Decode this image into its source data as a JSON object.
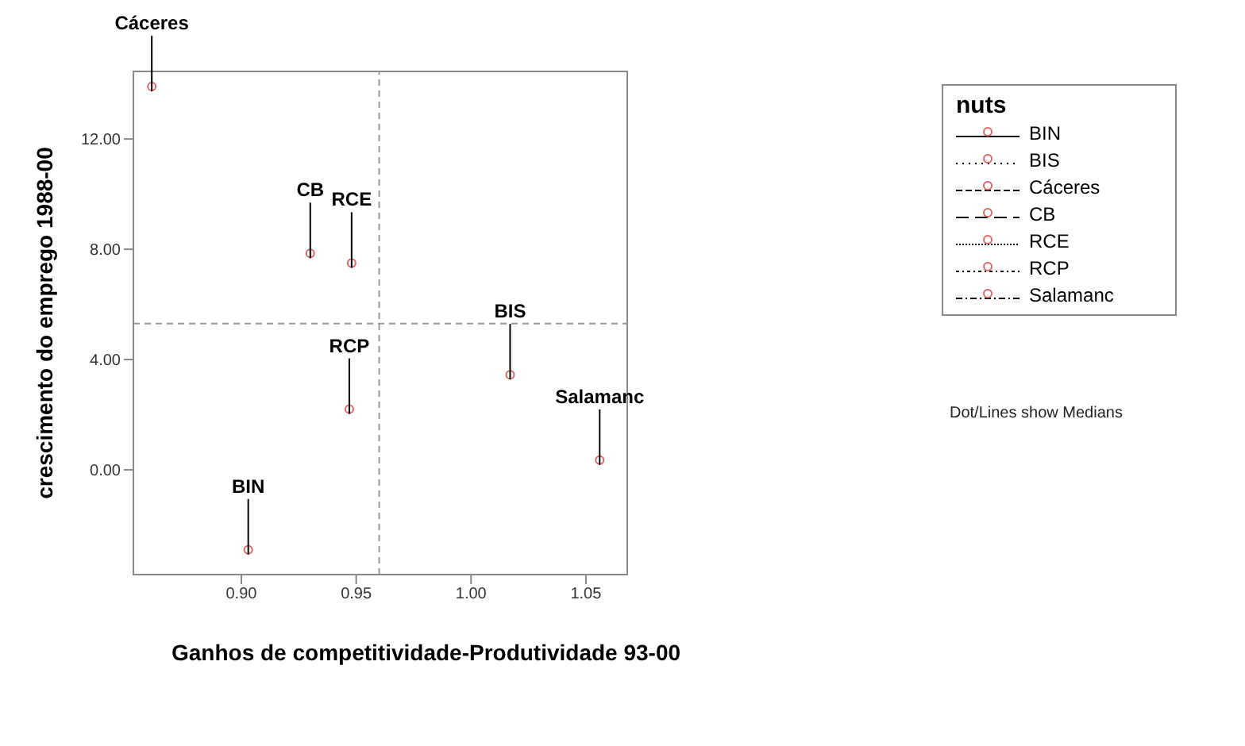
{
  "chart_data": {
    "type": "scatter",
    "xlabel": "Ganhos de competitividade-Produtividade 93-00",
    "ylabel": "crescimento do emprego 1988-00",
    "legend_title": "nuts",
    "legend": "right",
    "marker": "circle",
    "xlim": [
      0.853,
      1.068
    ],
    "ylim": [
      -3.8,
      14.45
    ],
    "xticks": [
      {
        "value": 0.9,
        "label": "0.90"
      },
      {
        "value": 0.95,
        "label": "0.95"
      },
      {
        "value": 1.0,
        "label": "1.00"
      },
      {
        "value": 1.05,
        "label": "1.05"
      }
    ],
    "yticks": [
      {
        "value": 0,
        "label": "0.00"
      },
      {
        "value": 4,
        "label": "4.00"
      },
      {
        "value": 8,
        "label": "8.00"
      },
      {
        "value": 12,
        "label": "12.00"
      }
    ],
    "series": [
      {
        "name": "BIN",
        "color": "#e06666",
        "x": [
          0.903
        ],
        "values": [
          -2.9
        ]
      },
      {
        "name": "BIS",
        "color": "#e06666",
        "x": [
          1.017
        ],
        "values": [
          3.45
        ]
      },
      {
        "name": "Cáceres",
        "color": "#e06666",
        "x": [
          0.861
        ],
        "values": [
          13.9
        ]
      },
      {
        "name": "CB",
        "color": "#e06666",
        "x": [
          0.93
        ],
        "values": [
          7.85
        ]
      },
      {
        "name": "RCE",
        "color": "#e06666",
        "x": [
          0.948
        ],
        "values": [
          7.5
        ]
      },
      {
        "name": "RCP",
        "color": "#e06666",
        "x": [
          0.947
        ],
        "values": [
          2.2
        ]
      },
      {
        "name": "Salamanc",
        "color": "#e06666",
        "x": [
          1.056
        ],
        "values": [
          0.35
        ]
      }
    ],
    "ref_lines": [
      {
        "axis": "x",
        "value": 0.96,
        "color": "#999999",
        "line_style": "dashed"
      },
      {
        "axis": "y",
        "value": 5.3,
        "color": "#999999",
        "line_style": "dashed"
      }
    ],
    "annotations": [
      "Dot/Lines show Medians"
    ]
  }
}
